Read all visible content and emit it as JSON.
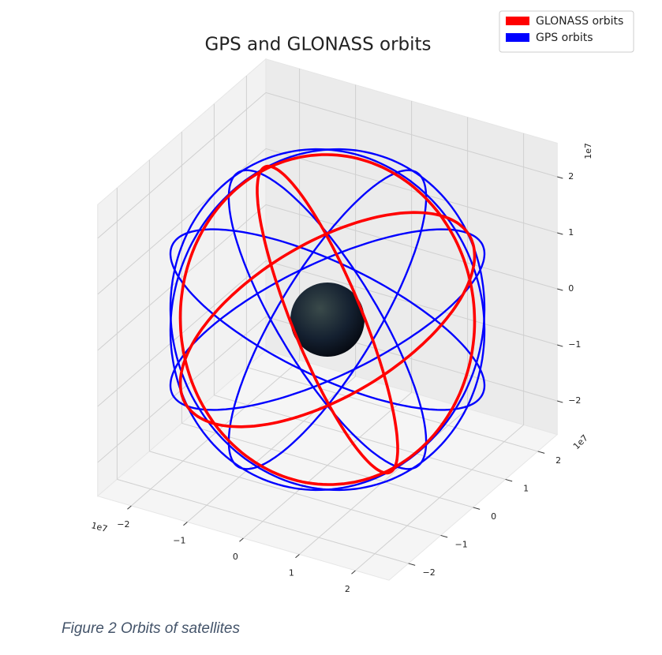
{
  "chart_data": {
    "type": "orbits3d",
    "title": "GPS and GLONASS orbits",
    "xlim": [
      -2.6,
      2.6
    ],
    "ylim": [
      -2.6,
      2.6
    ],
    "zlim": [
      -2.6,
      2.6
    ],
    "xticks": [
      {
        "value": -2,
        "label": "−2"
      },
      {
        "value": -1,
        "label": "−1"
      },
      0,
      1,
      2
    ],
    "yticks": [
      {
        "value": -2,
        "label": "−2"
      },
      {
        "value": -1,
        "label": "−1"
      },
      0,
      1,
      2
    ],
    "zticks": [
      {
        "value": -2,
        "label": "−2"
      },
      {
        "value": -1,
        "label": "−1"
      },
      0,
      1,
      2
    ],
    "x_offset_label": "1e7",
    "y_offset_label": "1e7",
    "z_offset_label": "1e7",
    "earth_radius": 0.637,
    "series": [
      {
        "name": "GLONASS orbits",
        "color": "#ff0000",
        "radius": 2.55,
        "inclination": 64.8,
        "raan": [
          0,
          120,
          240
        ]
      },
      {
        "name": "GPS orbits",
        "color": "#0000ff",
        "radius": 2.66,
        "inclination": 55,
        "raan": [
          0,
          60,
          120,
          180,
          240,
          300
        ]
      }
    ],
    "grid": true,
    "legend": "upper right"
  },
  "caption": "Figure 2 Orbits of satellites"
}
